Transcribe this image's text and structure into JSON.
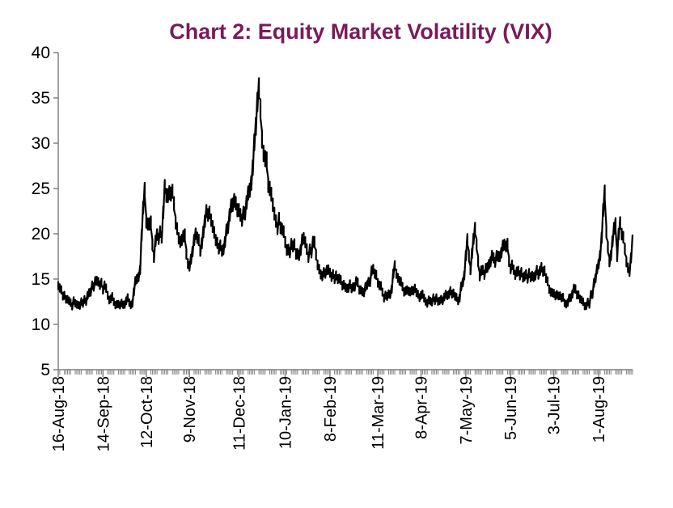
{
  "colors": {
    "title": "#7a1a5a",
    "line": "#000000",
    "axis": "#808080"
  },
  "chart_data": {
    "type": "line",
    "title": "Chart 2: Equity Market Volatility (VIX)",
    "xlabel": "",
    "ylabel": "",
    "ylim": [
      5,
      40
    ],
    "yticks": [
      "5",
      "10",
      "15",
      "20",
      "25",
      "30",
      "35",
      "40"
    ],
    "xlim": [
      "2018-08-16",
      "2019-08-23"
    ],
    "xticks": [
      {
        "date": "2018-08-16",
        "label": "16-Aug-18"
      },
      {
        "date": "2018-09-14",
        "label": "14-Sep-18"
      },
      {
        "date": "2018-10-12",
        "label": "12-Oct-18"
      },
      {
        "date": "2018-11-09",
        "label": "9-Nov-18"
      },
      {
        "date": "2018-12-11",
        "label": "11-Dec-18"
      },
      {
        "date": "2019-01-10",
        "label": "10-Jan-19"
      },
      {
        "date": "2019-02-08",
        "label": "8-Feb-19"
      },
      {
        "date": "2019-03-11",
        "label": "11-Mar-19"
      },
      {
        "date": "2019-04-08",
        "label": "8-Apr-19"
      },
      {
        "date": "2019-05-07",
        "label": "7-May-19"
      },
      {
        "date": "2019-06-05",
        "label": "5-Jun-19"
      },
      {
        "date": "2019-07-03",
        "label": "3-Jul-19"
      },
      {
        "date": "2019-08-01",
        "label": "1-Aug-19"
      }
    ],
    "grid": false,
    "legend": "none",
    "series": [
      {
        "points": [
          [
            "2018-08-16",
            14.3
          ],
          [
            "2018-08-20",
            13.2
          ],
          [
            "2018-08-24",
            12.4
          ],
          [
            "2018-08-28",
            12.2
          ],
          [
            "2018-09-01",
            12.3
          ],
          [
            "2018-09-05",
            13.5
          ],
          [
            "2018-09-09",
            14.8
          ],
          [
            "2018-09-13",
            14.6
          ],
          [
            "2018-09-17",
            13.2
          ],
          [
            "2018-09-21",
            12.5
          ],
          [
            "2018-09-25",
            12.1
          ],
          [
            "2018-09-29",
            12.6
          ],
          [
            "2018-10-03",
            12.3
          ],
          [
            "2018-10-05",
            14.8
          ],
          [
            "2018-10-08",
            16.0
          ],
          [
            "2018-10-10",
            22.9
          ],
          [
            "2018-10-11",
            24.9
          ],
          [
            "2018-10-12",
            21.3
          ],
          [
            "2018-10-15",
            21.3
          ],
          [
            "2018-10-17",
            17.4
          ],
          [
            "2018-10-19",
            19.9
          ],
          [
            "2018-10-22",
            19.6
          ],
          [
            "2018-10-24",
            25.2
          ],
          [
            "2018-10-26",
            24.2
          ],
          [
            "2018-10-29",
            24.7
          ],
          [
            "2018-10-31",
            21.2
          ],
          [
            "2018-11-02",
            19.5
          ],
          [
            "2018-11-06",
            19.9
          ],
          [
            "2018-11-08",
            16.7
          ],
          [
            "2018-11-10",
            17.2
          ],
          [
            "2018-11-13",
            20.0
          ],
          [
            "2018-11-16",
            18.1
          ],
          [
            "2018-11-20",
            22.5
          ],
          [
            "2018-11-23",
            21.5
          ],
          [
            "2018-11-27",
            19.0
          ],
          [
            "2018-11-30",
            18.1
          ],
          [
            "2018-12-04",
            20.7
          ],
          [
            "2018-12-07",
            23.2
          ],
          [
            "2018-12-10",
            22.6
          ],
          [
            "2018-12-13",
            21.5
          ],
          [
            "2018-12-17",
            24.5
          ],
          [
            "2018-12-19",
            25.6
          ],
          [
            "2018-12-21",
            30.1
          ],
          [
            "2018-12-24",
            36.1
          ],
          [
            "2018-12-26",
            30.4
          ],
          [
            "2018-12-28",
            28.3
          ],
          [
            "2019-01-02",
            23.2
          ],
          [
            "2019-01-04",
            21.4
          ],
          [
            "2019-01-08",
            20.5
          ],
          [
            "2019-01-11",
            18.2
          ],
          [
            "2019-01-15",
            18.6
          ],
          [
            "2019-01-18",
            17.8
          ],
          [
            "2019-01-22",
            19.5
          ],
          [
            "2019-01-25",
            17.4
          ],
          [
            "2019-01-29",
            19.1
          ],
          [
            "2019-02-01",
            16.1
          ],
          [
            "2019-02-05",
            15.6
          ],
          [
            "2019-02-08",
            15.7
          ],
          [
            "2019-02-12",
            15.4
          ],
          [
            "2019-02-15",
            14.9
          ],
          [
            "2019-02-20",
            14.0
          ],
          [
            "2019-02-25",
            14.8
          ],
          [
            "2019-03-01",
            13.6
          ],
          [
            "2019-03-05",
            14.7
          ],
          [
            "2019-03-08",
            16.1
          ],
          [
            "2019-03-12",
            14.3
          ],
          [
            "2019-03-15",
            12.9
          ],
          [
            "2019-03-20",
            13.9
          ],
          [
            "2019-03-22",
            16.5
          ],
          [
            "2019-03-26",
            14.7
          ],
          [
            "2019-03-29",
            13.7
          ],
          [
            "2019-04-03",
            13.7
          ],
          [
            "2019-04-08",
            13.2
          ],
          [
            "2019-04-12",
            12.3
          ],
          [
            "2019-04-17",
            12.6
          ],
          [
            "2019-04-22",
            12.6
          ],
          [
            "2019-04-26",
            13.3
          ],
          [
            "2019-04-30",
            13.1
          ],
          [
            "2019-05-03",
            12.9
          ],
          [
            "2019-05-06",
            15.4
          ],
          [
            "2019-05-08",
            19.4
          ],
          [
            "2019-05-10",
            16.0
          ],
          [
            "2019-05-13",
            20.6
          ],
          [
            "2019-05-16",
            15.3
          ],
          [
            "2019-05-20",
            16.2
          ],
          [
            "2019-05-23",
            16.9
          ],
          [
            "2019-05-28",
            17.5
          ],
          [
            "2019-05-31",
            18.7
          ],
          [
            "2019-06-03",
            18.9
          ],
          [
            "2019-06-05",
            16.1
          ],
          [
            "2019-06-10",
            15.9
          ],
          [
            "2019-06-14",
            15.3
          ],
          [
            "2019-06-18",
            15.2
          ],
          [
            "2019-06-21",
            15.4
          ],
          [
            "2019-06-25",
            16.3
          ],
          [
            "2019-06-28",
            15.1
          ],
          [
            "2019-07-02",
            13.5
          ],
          [
            "2019-07-05",
            13.3
          ],
          [
            "2019-07-09",
            13.0
          ],
          [
            "2019-07-12",
            12.4
          ],
          [
            "2019-07-17",
            13.9
          ],
          [
            "2019-07-22",
            12.5
          ],
          [
            "2019-07-26",
            12.2
          ],
          [
            "2019-07-31",
            16.1
          ],
          [
            "2019-08-02",
            17.6
          ],
          [
            "2019-08-05",
            24.6
          ],
          [
            "2019-08-06",
            20.2
          ],
          [
            "2019-08-08",
            16.9
          ],
          [
            "2019-08-12",
            21.1
          ],
          [
            "2019-08-13",
            17.5
          ],
          [
            "2019-08-15",
            21.2
          ],
          [
            "2019-08-19",
            16.9
          ],
          [
            "2019-08-21",
            15.8
          ],
          [
            "2019-08-23",
            19.9
          ]
        ]
      }
    ]
  }
}
